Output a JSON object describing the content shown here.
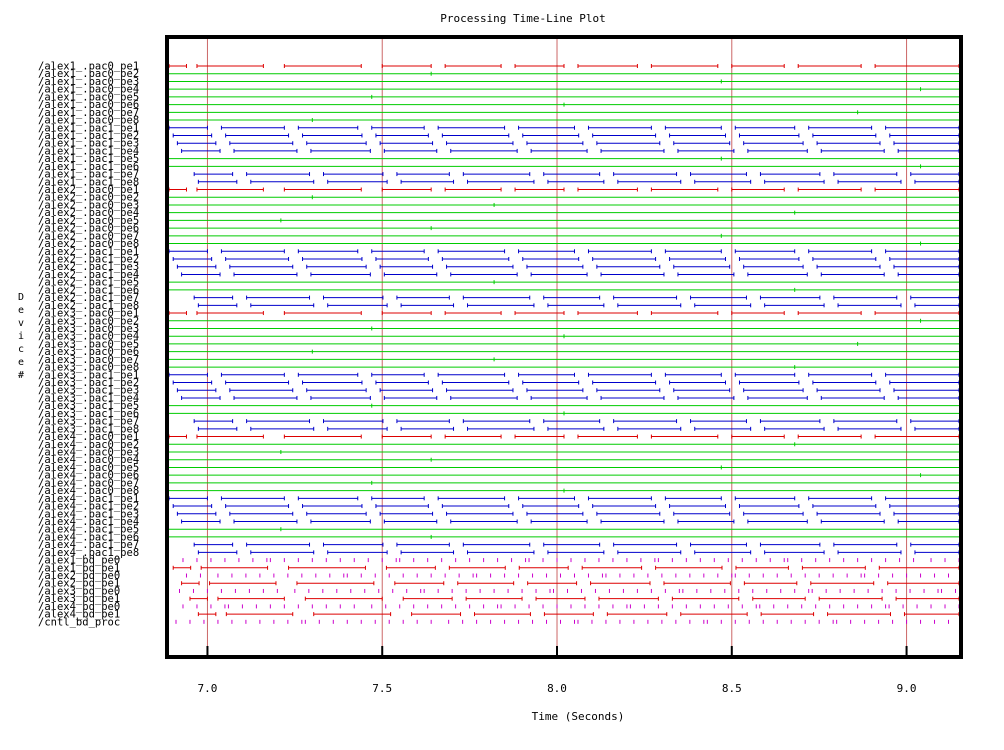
{
  "chart_data": {
    "type": "timeline",
    "title": "Processing Time-Line Plot",
    "xlabel": "Time (Seconds)",
    "ylabel": "Device #",
    "xlim": [
      6.89,
      9.15
    ],
    "x_ticks": [
      7.0,
      7.5,
      8.0,
      8.5,
      9.0
    ],
    "x_tick_labels": [
      "7.0",
      "7.5",
      "8.0",
      "8.5",
      "9.0"
    ],
    "grid_x": true,
    "colors": {
      "red": "#dd0000",
      "green": "#00cc00",
      "blue": "#0000cc",
      "magenta": "#cc00cc",
      "grid": "#cc6666",
      "frame": "#000000"
    },
    "devices": [
      {
        "label": "/alex1_.pac0_pe1",
        "color": "red"
      },
      {
        "label": "/alex1_.pac0_pe2",
        "color": "green"
      },
      {
        "label": "/alex1_.pac0_pe3",
        "color": "green"
      },
      {
        "label": "/alex1_.pac0_pe4",
        "color": "green"
      },
      {
        "label": "/alex1_.pac0_pe5",
        "color": "green"
      },
      {
        "label": "/alex1_.pac0_pe6",
        "color": "green"
      },
      {
        "label": "/alex1_.pac0_pe7",
        "color": "green"
      },
      {
        "label": "/alex1_.pac0_pe8",
        "color": "green"
      },
      {
        "label": "/alex1_.pac1_pe1",
        "color": "blue"
      },
      {
        "label": "/alex1_.pac1_pe2",
        "color": "blue"
      },
      {
        "label": "/alex1_.pac1_pe3",
        "color": "blue"
      },
      {
        "label": "/alex1_.pac1_pe4",
        "color": "blue"
      },
      {
        "label": "/alex1_.pac1_pe5",
        "color": "green"
      },
      {
        "label": "/alex1_.pac1_pe6",
        "color": "green"
      },
      {
        "label": "/alex1_.pac1_pe7",
        "color": "blue"
      },
      {
        "label": "/alex1_.pac1_pe8",
        "color": "blue"
      },
      {
        "label": "/alex2_.pac0_pe1",
        "color": "red"
      },
      {
        "label": "/alex2_.pac0_pe2",
        "color": "green"
      },
      {
        "label": "/alex2_.pac0_pe3",
        "color": "green"
      },
      {
        "label": "/alex2_.pac0_pe4",
        "color": "green"
      },
      {
        "label": "/alex2_.pac0_pe5",
        "color": "green"
      },
      {
        "label": "/alex2_.pac0_pe6",
        "color": "green"
      },
      {
        "label": "/alex2_.pac0_pe7",
        "color": "green"
      },
      {
        "label": "/alex2_.pac0_pe8",
        "color": "green"
      },
      {
        "label": "/alex2_.pac1_pe1",
        "color": "blue"
      },
      {
        "label": "/alex2_.pac1_pe2",
        "color": "blue"
      },
      {
        "label": "/alex2_.pac1_pe3",
        "color": "blue"
      },
      {
        "label": "/alex2_.pac1_pe4",
        "color": "blue"
      },
      {
        "label": "/alex2_.pac1_pe5",
        "color": "green"
      },
      {
        "label": "/alex2_.pac1_pe6",
        "color": "green"
      },
      {
        "label": "/alex2_.pac1_pe7",
        "color": "blue"
      },
      {
        "label": "/alex2_.pac1_pe8",
        "color": "blue"
      },
      {
        "label": "/alex3_.pac0_pe1",
        "color": "red"
      },
      {
        "label": "/alex3_.pac0_pe2",
        "color": "green"
      },
      {
        "label": "/alex3_.pac0_pe3",
        "color": "green"
      },
      {
        "label": "/alex3_.pac0_pe4",
        "color": "green"
      },
      {
        "label": "/alex3_.pac0_pe5",
        "color": "green"
      },
      {
        "label": "/alex3_.pac0_pe6",
        "color": "green"
      },
      {
        "label": "/alex3_.pac0_pe7",
        "color": "green"
      },
      {
        "label": "/alex3_.pac0_pe8",
        "color": "green"
      },
      {
        "label": "/alex3_.pac1_pe1",
        "color": "blue"
      },
      {
        "label": "/alex3_.pac1_pe2",
        "color": "blue"
      },
      {
        "label": "/alex3_.pac1_pe3",
        "color": "blue"
      },
      {
        "label": "/alex3_.pac1_pe4",
        "color": "blue"
      },
      {
        "label": "/alex3_.pac1_pe5",
        "color": "green"
      },
      {
        "label": "/alex3_.pac1_pe6",
        "color": "green"
      },
      {
        "label": "/alex3_.pac1_pe7",
        "color": "blue"
      },
      {
        "label": "/alex3_.pac1_pe8",
        "color": "blue"
      },
      {
        "label": "/alex4_.pac0_pe1",
        "color": "red"
      },
      {
        "label": "/alex4_.pac0_pe2",
        "color": "green"
      },
      {
        "label": "/alex4_.pac0_pe3",
        "color": "green"
      },
      {
        "label": "/alex4_.pac0_pe4",
        "color": "green"
      },
      {
        "label": "/alex4_.pac0_pe5",
        "color": "green"
      },
      {
        "label": "/alex4_.pac0_pe6",
        "color": "green"
      },
      {
        "label": "/alex4_.pac0_pe7",
        "color": "green"
      },
      {
        "label": "/alex4_.pac0_pe8",
        "color": "green"
      },
      {
        "label": "/alex4_.pac1_pe1",
        "color": "blue"
      },
      {
        "label": "/alex4_.pac1_pe2",
        "color": "blue"
      },
      {
        "label": "/alex4_.pac1_pe3",
        "color": "blue"
      },
      {
        "label": "/alex4_.pac1_pe4",
        "color": "blue"
      },
      {
        "label": "/alex4_.pac1_pe5",
        "color": "green"
      },
      {
        "label": "/alex4_.pac1_pe6",
        "color": "green"
      },
      {
        "label": "/alex4_.pac1_pe7",
        "color": "blue"
      },
      {
        "label": "/alex4_.pac1_pe8",
        "color": "blue"
      },
      {
        "label": "/alex1_bd_pe0",
        "color": "magenta"
      },
      {
        "label": "/alex1_bd_pe1",
        "color": "red"
      },
      {
        "label": "/alex2_bd_pe0",
        "color": "magenta"
      },
      {
        "label": "/alex2_bd_pe1",
        "color": "red"
      },
      {
        "label": "/alex3_bd_pe0",
        "color": "magenta"
      },
      {
        "label": "/alex3_bd_pe1",
        "color": "red"
      },
      {
        "label": "/alex4_bd_pe0",
        "color": "magenta"
      },
      {
        "label": "/alex4_bd_pe1",
        "color": "red"
      },
      {
        "label": "/cntl_bd_proc",
        "color": "magenta"
      }
    ],
    "red_intervals": [
      [
        6.89,
        6.94
      ],
      [
        6.97,
        7.16
      ],
      [
        7.22,
        7.44
      ],
      [
        7.5,
        7.64
      ],
      [
        7.68,
        7.84
      ],
      [
        7.88,
        8.02
      ],
      [
        8.06,
        8.23
      ],
      [
        8.27,
        8.46
      ],
      [
        8.5,
        8.65
      ],
      [
        8.69,
        8.87
      ],
      [
        8.91,
        9.15
      ]
    ],
    "blue_intervals": [
      [
        6.89,
        7.0
      ],
      [
        7.04,
        7.22
      ],
      [
        7.26,
        7.43
      ],
      [
        7.47,
        7.62
      ],
      [
        7.66,
        7.85
      ],
      [
        7.89,
        8.05
      ],
      [
        8.09,
        8.27
      ],
      [
        8.31,
        8.47
      ],
      [
        8.51,
        8.68
      ],
      [
        8.72,
        8.9
      ],
      [
        8.94,
        9.15
      ]
    ],
    "green_events": [
      7.21,
      7.26,
      7.44,
      7.62,
      7.81,
      8.02,
      8.43,
      8.65,
      8.84,
      9.03
    ]
  }
}
